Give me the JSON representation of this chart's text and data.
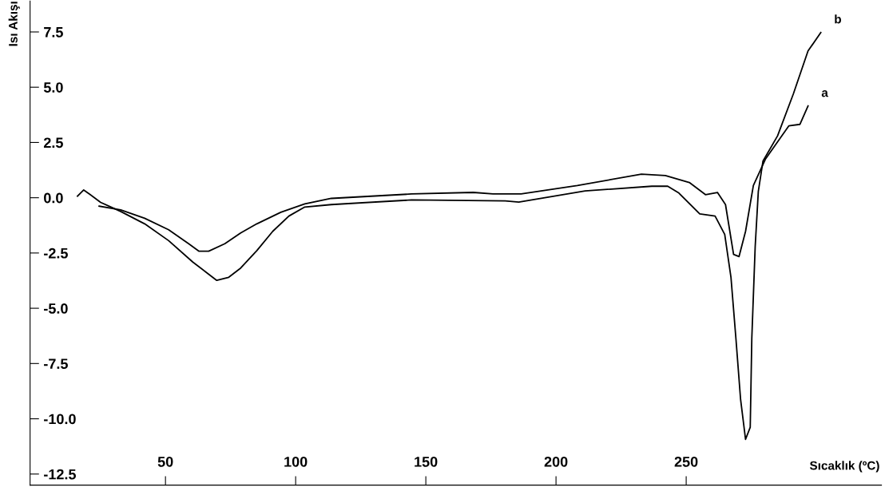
{
  "chart_data": {
    "type": "line",
    "xlabel": "Sıcaklık (ºC)",
    "ylabel": "Isı Akışı",
    "xlim": [
      -2,
      325
    ],
    "ylim": [
      -13,
      8.9
    ],
    "xticks": [
      50,
      100,
      150,
      200,
      250
    ],
    "yticks": [
      7.5,
      {
        "value": 5,
        "label": "5.0"
      },
      2.5,
      {
        "value": 0,
        "label": "0.0"
      },
      -2.5,
      {
        "value": -5,
        "label": "-5.0"
      },
      -7.5,
      {
        "value": -10,
        "label": "-10.0"
      },
      -12.5
    ],
    "grid": false,
    "legend": false,
    "marker": "none",
    "line_style": "solid",
    "series": [
      {
        "name": "a",
        "color": "#000000",
        "x": [
          24.5,
          32.8,
          42,
          51.2,
          58.9,
          62.9,
          66.6,
          72.8,
          78.9,
          85.1,
          94.3,
          103.5,
          113.7,
          144.5,
          168.2,
          175.8,
          186.6,
          208.2,
          232.8,
          242,
          251.2,
          257.4,
          262,
          265.1,
          268.2,
          270.3,
          272.8,
          275.8,
          280.5,
          289.4,
          293.7,
          296.8
        ],
        "values": [
          -0.38,
          -0.55,
          -0.93,
          -1.45,
          -2.08,
          -2.42,
          -2.42,
          -2.08,
          -1.59,
          -1.18,
          -0.66,
          -0.28,
          -0.03,
          0.17,
          0.24,
          0.17,
          0.17,
          0.55,
          1.07,
          1.0,
          0.69,
          0.14,
          0.24,
          -0.31,
          -2.56,
          -2.66,
          -1.52,
          0.55,
          1.76,
          3.25,
          3.32,
          4.15
        ]
      },
      {
        "name": "b",
        "color": "#000000",
        "x": [
          16.2,
          18.6,
          21.1,
          25.1,
          32.8,
          42.0,
          51.2,
          60.5,
          66.6,
          69.7,
          74.3,
          78.9,
          85.1,
          91.2,
          97.4,
          103.5,
          113.7,
          144.5,
          180.5,
          185.7,
          211.2,
          236.8,
          242.9,
          247.2,
          255.2,
          261.1,
          264.8,
          267.2,
          269.1,
          270.9,
          272.8,
          274.6,
          275.2,
          276.5,
          277.7,
          279.5,
          285.1,
          291.2,
          296.8,
          301.7
        ],
        "values": [
          0.07,
          0.35,
          0.14,
          -0.21,
          -0.62,
          -1.18,
          -1.94,
          -2.91,
          -3.46,
          -3.74,
          -3.6,
          -3.18,
          -2.39,
          -1.52,
          -0.83,
          -0.42,
          -0.31,
          -0.1,
          -0.14,
          -0.2,
          0.31,
          0.52,
          0.52,
          0.21,
          -0.73,
          -0.83,
          -1.66,
          -3.6,
          -6.37,
          -9.13,
          -10.93,
          -10.38,
          -6.37,
          -2.21,
          0.28,
          1.66,
          2.8,
          4.71,
          6.64,
          7.47
        ]
      }
    ]
  }
}
